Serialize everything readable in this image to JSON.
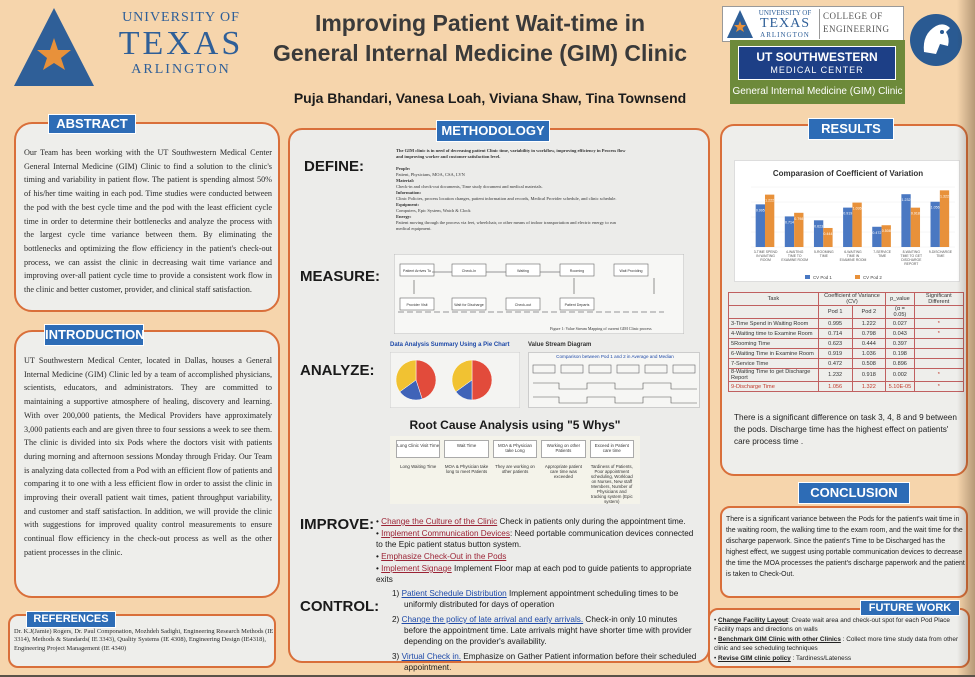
{
  "header": {
    "uta_logo": {
      "line1": "UNIVERSITY OF",
      "line2": "TEXAS",
      "line3": "ARLINGTON"
    },
    "title_line1": "Improving Patient Wait-time in",
    "title_line2": "General Internal Medicine (GIM) Clinic",
    "authors": "Puja Bhandari, Vanesa Loah, Viviana Shaw, Tina Townsend",
    "coe_logo": {
      "line1": "UNIVERSITY OF",
      "line2": "TEXAS",
      "line3": "ARLINGTON",
      "right1": "COLLEGE OF",
      "right2": "ENGINEERING"
    },
    "swmc": {
      "line1": "UT SOUTHWESTERN",
      "line2": "MEDICAL CENTER",
      "gim": "General Internal Medicine (GIM) Clinic"
    }
  },
  "abstract": {
    "heading": "ABSTRACT",
    "text": "Our Team has been working with the UT Southwestern Medical Center General Internal Medicine (GIM) Clinic to find a solution to the clinic's timing and variability in patient flow. The patient is spending almost 50% of his/her time waiting in each pod. Time studies were conducted between the pod with the best cycle time and the pod with the least efficient cycle time in order to determine their bottlenecks and analyze the process with the largest cycle time variance between them. By eliminating the bottlenecks and optimizing the flow efficiency in the patient's check-out process, we can assist the clinic in decreasing wait time variance and improving over-all patient cycle time to provide a consistent work flow in the clinic and better customer, provider, and clinical staff satisfaction."
  },
  "introduction": {
    "heading": "INTRODUCTION",
    "text": "UT Southwestern Medical Center, located in Dallas, houses a General Internal Medicine (GIM) Clinic led by a team of accomplished physicians, scientists, educators, and administrators. They are committed to maintaining a supportive atmosphere of healing, discovery and learning. With over 200,000 patients, the Medical Providers have approximately 3,000 patients each and are given three to four sessions a week to see them. The clinic is divided into six Pods where the doctors visit with patients during morning and afternoon sessions Monday through Friday. Our Team is analyzing data collected from a Pod with an efficient flow of patients and comparing it to one with a less efficient flow in order to assist the clinic in improving their overall patient wait times, patient throughput variability, and customer and staff satisfaction. In addition, we will provide the clinic with suggestions for improved quality control measurements to ensure continual flow efficiency in the check-out process as well as the other patient processes in the clinic."
  },
  "references": {
    "heading": "REFERENCES",
    "text": "Dr. K.J(Jamie) Rogers, Dr. Paul Componation, Mozhdeh Sadighi, Engineering Research Methods (IE 3314), Methods & Standards( IE 3343), Quality Systems (IE 4308), Engineering Design (IE4318), Engineering Project Management (IE 4340)"
  },
  "methodology": {
    "heading": "METHODOLOGY",
    "define_label": "DEFINE:",
    "define_intro": "The GIM clinic is in need of decreasing patient Clinic time, variability in workflow, improving efficiency in Process flow and improving worker and customer satisfaction level.",
    "define_lines": [
      "People:",
      "Patient, Physicians, MOA, CSA, LVN",
      "Material:",
      "Check-in and check-out documents, Time study document and medical materials.",
      "Information:",
      "Clinic Policies, process location changes, patient information and records, Medical Provider schedule, and clinic schedule.",
      "Equipment:",
      "Computers, Epic System, Watch & Clock",
      "Energy:",
      "Patient moving through the process via feet, wheelchair, or other means of indoor transportation and electric energy to run medical equipment."
    ],
    "measure_label": "MEASURE:",
    "measure_caption": "Figure 1: Value Stream Mapping of current GIM Clinic process",
    "measure_boxes": [
      "Patient Arrives To",
      "Check-In",
      "Waiting",
      "Rooming",
      "Wait Providing",
      "Provider Visit",
      "Wait for Discharge",
      "Check-out",
      "Patient Departs"
    ],
    "analyze_label": "ANALYZE:",
    "pie_title": "Data Analysis Summary Using a Pie Chart",
    "vsd_title": "Value Stream Diagram",
    "vsd_sub": "Comparison between Pod 1 and 2 in Average and Median",
    "rca_title": "Root Cause Analysis using \"5 Whys\"",
    "rca_headers": [
      "Long Clinic Visit Time",
      "Wait Time",
      "MOA & Physician take Long",
      "Working on other Patients",
      "Exceed in Patient care time"
    ],
    "rca_row": [
      "Long Waiting Time",
      "MOA & Physician take long to meet Patients",
      "They are working on other patients",
      "Appropriate patient care time was exceeded",
      "Tardiness of Patients, Poor appointment scheduling, Workload on Nurses, New staff Members, Number of Physicians and tracking system (Epic system)"
    ],
    "improve_label": "IMPROVE:",
    "improve_items": [
      {
        "link": "Change the Culture of the Clinic",
        "text": " Check in patients only during the appointment time."
      },
      {
        "link": "Implement Communication Devices",
        "text": ": Need portable communication devices connected to the Epic patient status button system."
      },
      {
        "link": "Emphasize Check-Out in the Pods",
        "text": ""
      },
      {
        "link": "Implement Signage",
        "text": " Implement Floor map at each pod to guide patients to appropriate exits"
      }
    ],
    "control_label": "CONTROL:",
    "control_items": [
      {
        "num": "1)",
        "link": "Patient Schedule Distribution",
        "text": " Implement appointment scheduling times to be uniformly distributed for days of operation"
      },
      {
        "num": "2)",
        "link": "Change the policy of late arrival and early arrivals.",
        "text": " Check-in only 10 minutes before the appointment time. Late arrivals might have shorter time with provider depending on the provider's availability."
      },
      {
        "num": "3)",
        "link": "Virtual Check in.",
        "text": " Emphasize on Gather Patient information before their scheduled appointment."
      }
    ]
  },
  "results": {
    "heading": "RESULTS",
    "summary": "There is a significant difference on task 3, 4, 8 and 9 between the pods. Discharge time has the highest effect on patients' care process time .",
    "table": {
      "headers": [
        "Task",
        "Coefficient of Variance (CV)",
        "p_value",
        "Significant Different"
      ],
      "subheaders": [
        "",
        "Pod 1",
        "Pod 2",
        "(α = 0.05)",
        ""
      ],
      "rows": [
        [
          "3-Time Spend in Waiting Room",
          "0.995",
          "1.222",
          "0.027",
          "*"
        ],
        [
          "4-Waiting time to Examine Room",
          "0.714",
          "0.798",
          "0.043",
          "*"
        ],
        [
          "5Rooming Time",
          "0.623",
          "0.444",
          "0.397",
          ""
        ],
        [
          "6-Waiting Time in Examine Room",
          "0.919",
          "1.036",
          "0.198",
          ""
        ],
        [
          "7-Service Time",
          "0.472",
          "0.508",
          "0.896",
          ""
        ],
        [
          "8-Waiting Time to get Discharge Report",
          "1.232",
          "0.918",
          "0.002",
          "*"
        ],
        [
          "9-Discharge Time",
          "1.056",
          "1.322",
          "5.10E-05",
          "*"
        ]
      ]
    }
  },
  "conclusion": {
    "heading": "CONCLUSION",
    "text": "There is a significant variance between the Pods for the patient's wait time in the waiting room, the walking time to the exam room, and the wait time for the discharge paperwork. Since the patient's Time to be Discharged has the highest effect, we suggest using portable communication devices to decrease the time the MOA processes the patient's discharge paperwork and the patient is taken to Check-Out."
  },
  "future_work": {
    "heading": "FUTURE WORK",
    "items": [
      {
        "link": "Change Facility Layout",
        "text": ": Create wait area and check-out spot for each Pod Place Facility maps and directions on walls"
      },
      {
        "link": "Benchmark GIM Clinic with other Clinics",
        "text": " : Collect more time study data from other clinic and see scheduling techniques"
      },
      {
        "link": "Revise GIM clinic policy",
        "text": " : Tardiness/Lateness"
      }
    ]
  },
  "chart_data": [
    {
      "type": "bar",
      "title": "Comparasion of Coefficient of Variation",
      "categories": [
        "3-TIME SPEND IN WAITING ROOM",
        "4-WAITING TIME TO EXAMINE ROOM",
        "5-ROOMING TIME",
        "6-WAITING TIME IN EXAMINE ROOM",
        "7-SERVICE TIME",
        "8-WAITING TIME TO GET DISCHARGE REPORT",
        "9-DISCHARGE TIME"
      ],
      "series": [
        {
          "name": "CV Pod 1",
          "values": [
            0.995,
            0.714,
            0.623,
            0.919,
            0.472,
            1.232,
            1.056
          ],
          "color": "#4a78c2"
        },
        {
          "name": "CV Pod 2",
          "values": [
            1.222,
            0.798,
            0.444,
            1.036,
            0.508,
            0.918,
            1.322
          ],
          "color": "#e8913a"
        }
      ],
      "ylim": [
        0,
        1.4
      ],
      "legend": "bottom"
    },
    {
      "type": "pie",
      "title": "Data Analysis Summary Using a Pie Chart",
      "pies": [
        {
          "name": "Pod 1",
          "values": [
            45,
            20,
            35
          ],
          "colors": [
            "#e24b3b",
            "#3f63b8",
            "#f1c232"
          ]
        },
        {
          "name": "Pod 2",
          "values": [
            50,
            15,
            35
          ],
          "colors": [
            "#e24b3b",
            "#3f63b8",
            "#f1c232"
          ]
        }
      ]
    }
  ]
}
